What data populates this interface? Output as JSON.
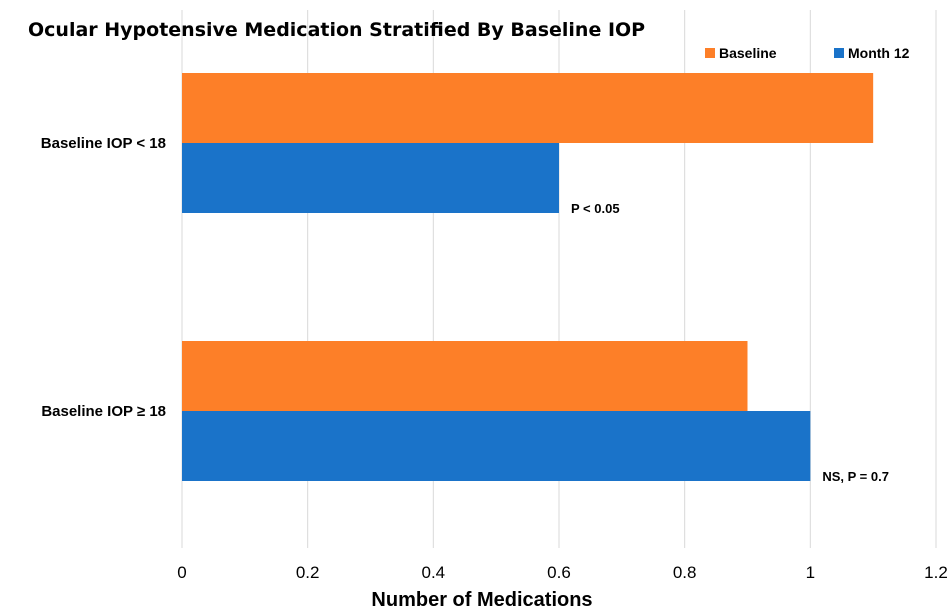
{
  "chart_data": {
    "type": "bar",
    "orientation": "horizontal",
    "title": "Ocular Hypotensive Medication Stratified By Baseline IOP",
    "xlabel": "Number of Medications",
    "ylabel": "",
    "categories": [
      "Baseline IOP < 18",
      "Baseline IOP ≥ 18"
    ],
    "series": [
      {
        "name": "Baseline",
        "color": "#fd7f28",
        "values": [
          1.1,
          0.9
        ]
      },
      {
        "name": "Month 12",
        "color": "#1a73c9",
        "values": [
          0.6,
          1.0
        ]
      }
    ],
    "xlim": [
      0,
      1.2
    ],
    "xticks": [
      0,
      0.2,
      0.4,
      0.6,
      0.8,
      1,
      1.2
    ],
    "xtick_labels": [
      "0",
      "0.2",
      "0.4",
      "0.6",
      "0.8",
      "1",
      "1.2"
    ],
    "grid": "vertical",
    "legend_position": "top-right",
    "annotations": [
      "P < 0.05",
      "NS, P = 0.7"
    ]
  }
}
